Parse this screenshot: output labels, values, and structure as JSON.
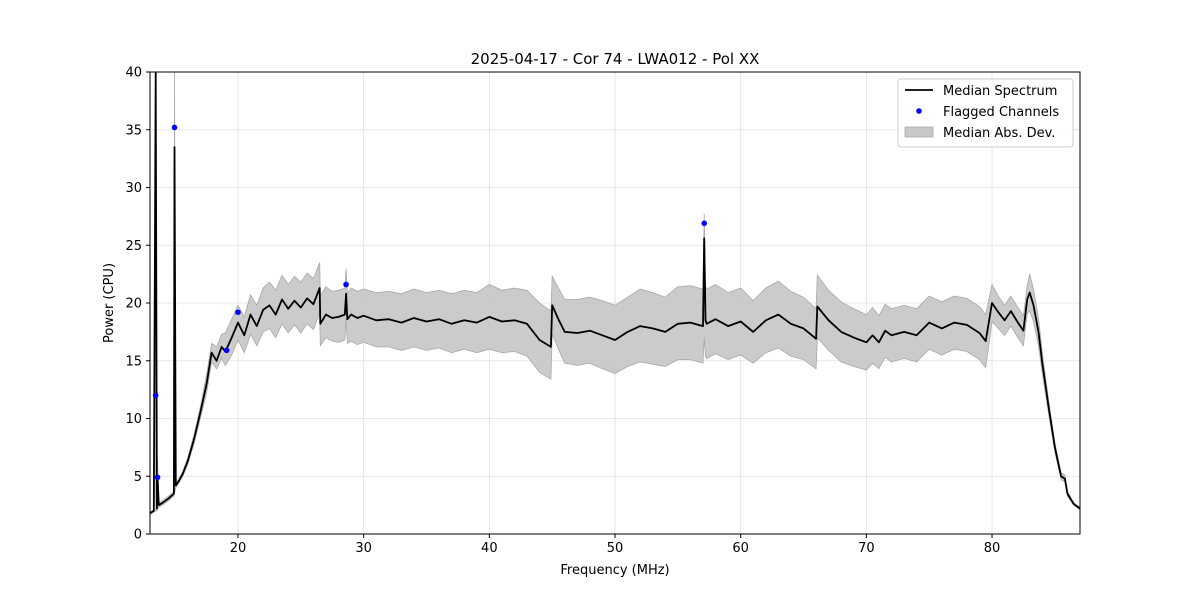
{
  "chart_data": {
    "type": "line",
    "title": "2025-04-17 - Cor 74 - LWA012 - Pol XX",
    "xlabel": "Frequency (MHz)",
    "ylabel": "Power (CPU)",
    "xlim": [
      13,
      87
    ],
    "ylim": [
      0,
      40
    ],
    "xticks": [
      20,
      30,
      40,
      50,
      60,
      70,
      80
    ],
    "yticks": [
      0,
      5,
      10,
      15,
      20,
      25,
      30,
      35,
      40
    ],
    "grid": true,
    "legend_position": "top-right",
    "colors": {
      "median": "#000000",
      "flagged": "#0000ff",
      "mad": "#c8c8c8"
    },
    "series": [
      {
        "name": "Median Spectrum",
        "kind": "line",
        "x": [
          13.0,
          13.3,
          13.45,
          13.55,
          13.6,
          13.7,
          14.0,
          14.5,
          14.9,
          14.95,
          15.05,
          15.3,
          15.6,
          16.0,
          16.5,
          17.0,
          17.5,
          17.9,
          18.3,
          18.7,
          19.0,
          19.5,
          20.0,
          20.5,
          21.0,
          21.5,
          22.0,
          22.5,
          23.0,
          23.5,
          24.0,
          24.5,
          25.0,
          25.5,
          26.0,
          26.5,
          26.55,
          27.0,
          27.5,
          28.0,
          28.5,
          28.6,
          28.7,
          29.0,
          29.5,
          30.0,
          31.0,
          32.0,
          33.0,
          34.0,
          35.0,
          36.0,
          37.0,
          38.0,
          39.0,
          40.0,
          41.0,
          42.0,
          43.0,
          44.0,
          44.9,
          45.0,
          45.5,
          46.0,
          47.0,
          48.0,
          49.0,
          50.0,
          51.0,
          52.0,
          53.0,
          54.0,
          55.0,
          56.0,
          57.0,
          57.1,
          57.2,
          57.3,
          58.0,
          59.0,
          60.0,
          61.0,
          62.0,
          63.0,
          64.0,
          65.0,
          66.0,
          66.1,
          67.0,
          68.0,
          69.0,
          70.0,
          70.5,
          71.0,
          71.5,
          72.0,
          73.0,
          74.0,
          75.0,
          76.0,
          77.0,
          78.0,
          79.0,
          79.5,
          80.0,
          80.5,
          81.0,
          81.5,
          82.0,
          82.5,
          82.8,
          83.0,
          83.3,
          83.7,
          84.0,
          84.5,
          85.0,
          85.5,
          85.8,
          86.0,
          86.5,
          87.0
        ],
        "y": [
          1.8,
          2.0,
          40.0,
          2.2,
          5.0,
          2.5,
          2.7,
          3.1,
          3.5,
          33.5,
          4.2,
          4.6,
          5.2,
          6.3,
          8.2,
          10.5,
          13.0,
          15.7,
          15.0,
          16.2,
          15.8,
          17.0,
          18.3,
          17.2,
          19.0,
          18.0,
          19.4,
          19.8,
          19.0,
          20.3,
          19.5,
          20.2,
          19.6,
          20.4,
          19.9,
          21.3,
          18.2,
          19.0,
          18.7,
          18.8,
          19.0,
          20.8,
          18.6,
          19.0,
          18.7,
          18.9,
          18.5,
          18.6,
          18.3,
          18.7,
          18.4,
          18.6,
          18.2,
          18.5,
          18.3,
          18.8,
          18.4,
          18.5,
          18.2,
          16.8,
          16.2,
          19.8,
          18.6,
          17.5,
          17.4,
          17.6,
          17.2,
          16.8,
          17.5,
          18.0,
          17.8,
          17.5,
          18.2,
          18.3,
          18.0,
          25.6,
          18.5,
          18.2,
          18.6,
          18.0,
          18.4,
          17.5,
          18.5,
          19.0,
          18.2,
          17.8,
          16.9,
          19.7,
          18.5,
          17.5,
          17.0,
          16.6,
          17.2,
          16.6,
          17.6,
          17.2,
          17.5,
          17.2,
          18.3,
          17.8,
          18.3,
          18.1,
          17.4,
          16.7,
          20.0,
          19.2,
          18.5,
          19.3,
          18.4,
          17.6,
          20.3,
          20.9,
          19.8,
          17.5,
          14.8,
          11.0,
          7.5,
          5.0,
          4.8,
          3.5,
          2.6,
          2.2
        ],
        "spread_upper": [
          1.9,
          2.1,
          40.0,
          2.4,
          6.5,
          2.7,
          2.9,
          3.3,
          3.7,
          40.0,
          4.4,
          4.8,
          5.4,
          6.6,
          8.6,
          11.0,
          13.8,
          16.5,
          16.2,
          17.3,
          17.4,
          18.6,
          19.8,
          18.8,
          20.7,
          19.8,
          21.3,
          21.8,
          21.1,
          22.4,
          21.6,
          22.3,
          21.8,
          22.6,
          22.1,
          23.5,
          20.6,
          21.4,
          21.0,
          21.1,
          21.3,
          23.0,
          20.8,
          21.3,
          21.0,
          21.2,
          20.9,
          21.0,
          20.8,
          21.2,
          20.9,
          21.1,
          20.8,
          21.1,
          20.9,
          21.6,
          21.1,
          21.3,
          21.1,
          20.0,
          19.3,
          22.3,
          21.3,
          20.3,
          20.3,
          20.5,
          20.2,
          19.8,
          20.5,
          21.2,
          20.9,
          20.5,
          21.4,
          21.5,
          21.2,
          27.7,
          21.5,
          21.2,
          21.6,
          20.9,
          21.3,
          20.2,
          21.3,
          21.9,
          21.0,
          20.5,
          19.5,
          22.4,
          21.1,
          20.1,
          19.5,
          19.0,
          19.6,
          18.9,
          19.9,
          19.5,
          19.8,
          19.5,
          20.6,
          20.1,
          20.6,
          20.4,
          19.7,
          19.0,
          21.6,
          20.6,
          19.8,
          20.6,
          19.7,
          18.9,
          21.5,
          22.5,
          21.2,
          18.7,
          15.7,
          11.6,
          7.9,
          5.3,
          5.1,
          3.7,
          2.7,
          2.3
        ],
        "spread_lower": [
          1.7,
          1.9,
          2.0,
          2.0,
          2.2,
          2.3,
          2.5,
          2.9,
          3.3,
          3.5,
          4.0,
          4.4,
          5.0,
          6.0,
          7.8,
          10.0,
          12.2,
          14.9,
          14.3,
          15.2,
          14.6,
          15.5,
          16.8,
          15.7,
          17.3,
          16.3,
          17.5,
          17.8,
          17.0,
          18.2,
          17.4,
          18.1,
          17.4,
          18.2,
          17.7,
          19.1,
          16.3,
          17.0,
          16.7,
          16.6,
          16.8,
          18.6,
          16.5,
          16.7,
          16.4,
          16.6,
          16.2,
          16.2,
          15.9,
          16.2,
          15.9,
          16.1,
          15.7,
          16.0,
          15.7,
          16.0,
          15.7,
          15.8,
          15.4,
          14.0,
          13.4,
          17.3,
          16.0,
          14.8,
          14.6,
          14.8,
          14.3,
          13.9,
          14.5,
          14.9,
          14.7,
          14.5,
          15.1,
          15.1,
          14.8,
          17.0,
          15.4,
          15.2,
          15.6,
          15.1,
          15.5,
          14.8,
          15.7,
          16.1,
          15.4,
          15.1,
          14.3,
          17.0,
          15.9,
          14.9,
          14.5,
          14.2,
          14.8,
          14.3,
          15.3,
          14.9,
          15.2,
          14.9,
          16.0,
          15.5,
          16.0,
          15.8,
          15.1,
          14.4,
          18.4,
          17.8,
          17.2,
          18.0,
          17.1,
          16.3,
          19.1,
          19.3,
          18.4,
          16.3,
          13.9,
          10.4,
          7.1,
          4.7,
          4.5,
          3.3,
          2.5,
          2.1
        ]
      },
      {
        "name": "Flagged Channels",
        "kind": "scatter",
        "x": [
          13.45,
          13.6,
          14.95,
          19.1,
          20.0,
          28.6,
          57.1
        ],
        "y": [
          12.0,
          4.9,
          35.2,
          15.9,
          19.2,
          21.6,
          26.9
        ]
      },
      {
        "name": "Median Abs. Dev.",
        "kind": "band"
      }
    ]
  }
}
